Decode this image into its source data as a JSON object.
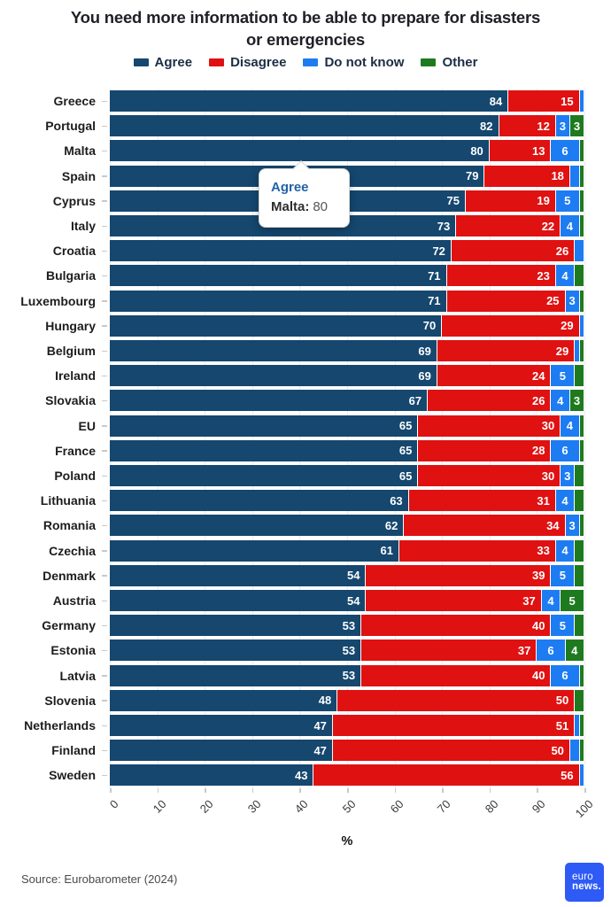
{
  "title_lines": [
    "You need more information to be able to prepare for disasters",
    "or emergencies"
  ],
  "chart_data": {
    "type": "bar",
    "stacked": true,
    "orientation": "horizontal",
    "title": "You need more information to be able to prepare for disasters or emergencies",
    "categories": [
      "Greece",
      "Portugal",
      "Malta",
      "Spain",
      "Cyprus",
      "Italy",
      "Croatia",
      "Bulgaria",
      "Luxembourg",
      "Hungary",
      "Belgium",
      "Ireland",
      "Slovakia",
      "EU",
      "France",
      "Poland",
      "Lithuania",
      "Romania",
      "Czechia",
      "Denmark",
      "Austria",
      "Germany",
      "Estonia",
      "Latvia",
      "Slovenia",
      "Netherlands",
      "Finland",
      "Sweden"
    ],
    "series": [
      {
        "name": "Agree",
        "color": "#15476f",
        "values": [
          84,
          82,
          80,
          79,
          75,
          73,
          72,
          71,
          71,
          70,
          69,
          69,
          67,
          65,
          65,
          65,
          63,
          62,
          61,
          54,
          54,
          53,
          53,
          53,
          48,
          47,
          47,
          43
        ]
      },
      {
        "name": "Disagree",
        "color": "#e01111",
        "values": [
          15,
          12,
          13,
          18,
          19,
          22,
          26,
          23,
          25,
          29,
          29,
          24,
          26,
          30,
          28,
          30,
          31,
          34,
          33,
          39,
          37,
          40,
          37,
          40,
          50,
          51,
          50,
          56
        ]
      },
      {
        "name": "Do not know",
        "color": "#1d7cf2",
        "values": [
          1,
          3,
          6,
          2,
          5,
          4,
          2,
          4,
          3,
          1,
          1,
          5,
          4,
          4,
          6,
          3,
          4,
          3,
          4,
          5,
          4,
          5,
          6,
          6,
          0,
          1,
          2,
          1
        ]
      },
      {
        "name": "Other",
        "color": "#1e7a1e",
        "values": [
          0,
          3,
          1,
          1,
          1,
          1,
          0,
          2,
          1,
          0,
          1,
          2,
          3,
          1,
          1,
          2,
          2,
          1,
          2,
          2,
          5,
          2,
          4,
          1,
          2,
          1,
          1,
          0
        ]
      }
    ],
    "xlabel": "%",
    "xlim": [
      0,
      100
    ],
    "xticks": [
      0,
      10,
      20,
      30,
      40,
      50,
      60,
      70,
      80,
      90,
      100
    ],
    "legend_position": "top",
    "grid": true,
    "value_label_min": 3
  },
  "tooltip": {
    "series": "Agree",
    "label": "Malta:",
    "value": "80"
  },
  "source": "Source: Eurobarometer (2024)",
  "logo": {
    "line1": "euro",
    "line2": "news."
  }
}
